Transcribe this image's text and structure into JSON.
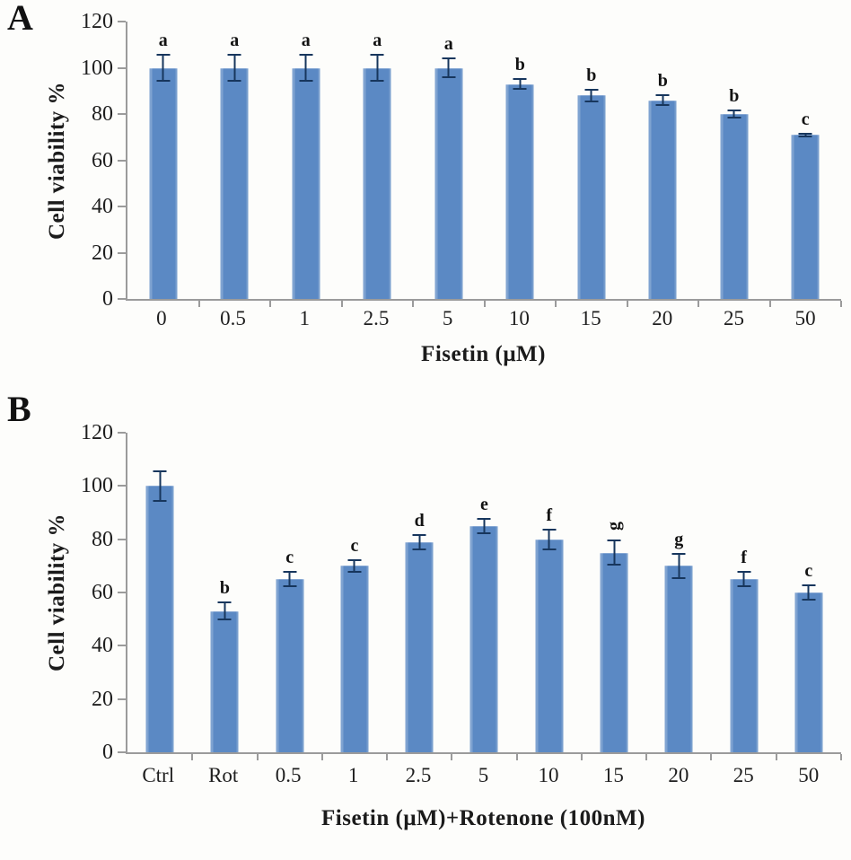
{
  "figure": {
    "background": "#fdfdfb",
    "text_color": "#1b1b1b"
  },
  "chart_data": [
    {
      "type": "bar",
      "panel_label": "A",
      "title": "",
      "ylabel": "Cell viability %",
      "xlabel": "Fisetin (μM)",
      "ylim": [
        0,
        120
      ],
      "yticks": [
        0,
        20,
        40,
        60,
        80,
        100,
        120
      ],
      "categories": [
        "0",
        "0.5",
        "1",
        "2.5",
        "5",
        "10",
        "15",
        "20",
        "25",
        "50"
      ],
      "values": [
        100,
        100,
        100,
        100,
        100,
        93,
        88,
        86,
        80,
        71
      ],
      "errors": [
        6,
        6,
        6,
        6,
        4.5,
        2.5,
        3,
        2.5,
        2,
        1
      ],
      "sig_letters": [
        "a",
        "a",
        "a",
        "a",
        "a",
        "b",
        "b",
        "b",
        "b",
        "c"
      ],
      "rotated_letter_indices": [],
      "bar_color": "#5b89c4",
      "error_color": "#17365d",
      "axis_color": "#9b9b9b",
      "grid": false,
      "legend": "none"
    },
    {
      "type": "bar",
      "panel_label": "B",
      "title": "",
      "ylabel": "Cell viability %",
      "xlabel": "Fisetin (μM)+Rotenone (100nM)",
      "ylim": [
        0,
        120
      ],
      "yticks": [
        0,
        20,
        40,
        60,
        80,
        100,
        120
      ],
      "categories": [
        "Ctrl",
        "Rot",
        "0.5",
        "1",
        "2.5",
        "5",
        "10",
        "15",
        "20",
        "25",
        "50"
      ],
      "values": [
        100,
        53,
        65,
        70,
        79,
        85,
        80,
        75,
        70,
        65,
        60
      ],
      "errors": [
        6,
        3.5,
        3,
        2.5,
        3,
        3,
        4,
        5,
        5,
        3,
        3
      ],
      "sig_letters": [
        "",
        "b",
        "c",
        "c",
        "d",
        "e",
        "f",
        "g",
        "g",
        "f",
        "c"
      ],
      "rotated_letter_indices": [
        7
      ],
      "bar_color": "#5b89c4",
      "error_color": "#17365d",
      "axis_color": "#9b9b9b",
      "grid": false,
      "legend": "none"
    }
  ]
}
